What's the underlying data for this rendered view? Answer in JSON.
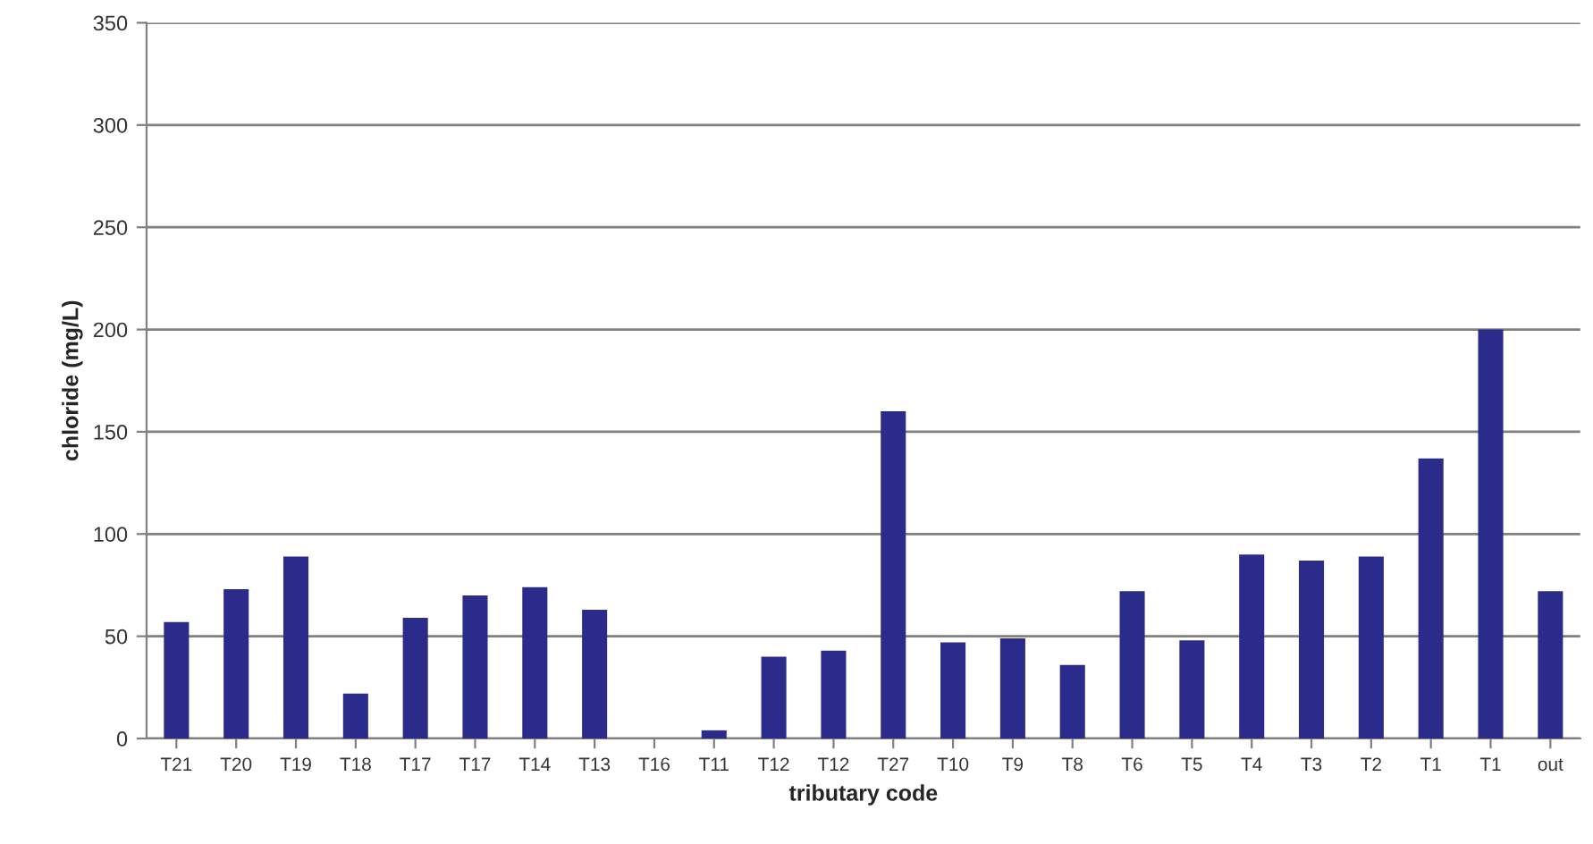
{
  "chart_data": {
    "type": "bar",
    "xlabel": "tributary code",
    "ylabel": "chloride (mg/L)",
    "categories": [
      "T21",
      "T20",
      "T19",
      "T18",
      "T17",
      "T17",
      "T14",
      "T13",
      "T16",
      "T11",
      "T12",
      "T12",
      "T27",
      "T10",
      "T9",
      "T8",
      "T6",
      "T5",
      "T4",
      "T3",
      "T2",
      "T1",
      "T1",
      "out"
    ],
    "values": [
      57,
      73,
      89,
      22,
      59,
      70,
      74,
      63,
      null,
      4,
      40,
      43,
      160,
      47,
      49,
      36,
      72,
      48,
      90,
      87,
      89,
      137,
      200,
      72
    ],
    "color": "#2b2b8c",
    "ylim": [
      0,
      350
    ],
    "yticks": [
      0,
      50,
      100,
      150,
      200,
      250,
      300,
      350
    ],
    "grid": "y",
    "legend": false
  }
}
